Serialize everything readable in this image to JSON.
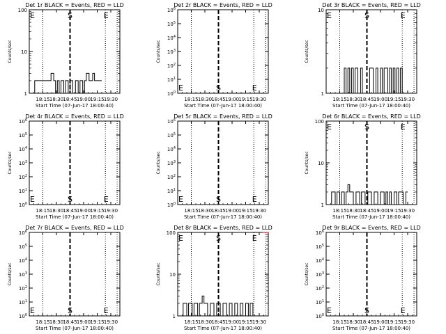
{
  "figure": {
    "start_time_label": "Start Time (07-Jun-17 18:00:40)",
    "x_ticks": [
      "18:15",
      "18:30",
      "18:45",
      "19:00",
      "19:15",
      "19:30"
    ],
    "x_tick_values": [
      15,
      30,
      45,
      60,
      75,
      90
    ],
    "xlim": [
      0,
      100
    ],
    "start_marker_x": 45,
    "end_marker_x": 84,
    "start_label": "S",
    "end_label": "E",
    "ylabel": "Counts/sec",
    "colors": {
      "events": "#000000",
      "lld": "#ff0000",
      "axes": "#000000"
    }
  },
  "chart_data": [
    {
      "type": "line",
      "title": "Det 1r BLACK = Events, RED = LLD",
      "ylabel": "Counts/sec",
      "xlabel": "Start Time (07-Jun-17 18:00:40)",
      "y_scale": "log",
      "ylim": [
        1,
        100
      ],
      "y_ticks": [
        "1",
        "10",
        "100"
      ],
      "y_tick_values": [
        1,
        10,
        100
      ],
      "E_left": true,
      "series": [
        {
          "values": [
            [
              6,
              1
            ],
            [
              6,
              2
            ],
            [
              24,
              2
            ],
            [
              24,
              3
            ],
            [
              27,
              3
            ],
            [
              27,
              2
            ],
            [
              29,
              2
            ],
            [
              29,
              1
            ],
            [
              31,
              1
            ],
            [
              31,
              2
            ],
            [
              33,
              2
            ],
            [
              33,
              1
            ],
            [
              35,
              1
            ],
            [
              35,
              2
            ],
            [
              38,
              2
            ],
            [
              38,
              1
            ],
            [
              40,
              1
            ],
            [
              40,
              2
            ],
            [
              43,
              2
            ],
            [
              43,
              1
            ],
            [
              45,
              1
            ],
            [
              45,
              2
            ],
            [
              48,
              2
            ],
            [
              48,
              1
            ],
            [
              51,
              1
            ],
            [
              51,
              2
            ],
            [
              54,
              2
            ],
            [
              54,
              1
            ],
            [
              56,
              1
            ],
            [
              56,
              2
            ],
            [
              59,
              2
            ],
            [
              59,
              1
            ],
            [
              61,
              1
            ],
            [
              61,
              2
            ],
            [
              63,
              2
            ],
            [
              63,
              3
            ],
            [
              66,
              3
            ],
            [
              66,
              2
            ],
            [
              70,
              2
            ],
            [
              70,
              3
            ],
            [
              72,
              3
            ],
            [
              72,
              2
            ],
            [
              80,
              2
            ]
          ]
        }
      ]
    },
    {
      "type": "line",
      "title": "Det 2r BLACK = Events, RED = LLD",
      "ylabel": "Counts/sec",
      "xlabel": "Start Time (07-Jun-17 18:00:40)",
      "y_scale": "log",
      "ylim": [
        1,
        1000000
      ],
      "y_ticks": [
        "10^0",
        "10^1",
        "10^2",
        "10^3",
        "10^4",
        "10^5",
        "10^6"
      ],
      "y_tick_values": [
        1,
        10,
        100,
        1000,
        10000,
        100000,
        1000000
      ],
      "E_left": true,
      "series": []
    },
    {
      "type": "line",
      "title": "Det 3r BLACK = Events, RED = LLD",
      "ylabel": "Counts/sec",
      "xlabel": "Start Time (07-Jun-17 18:00:40)",
      "y_scale": "log",
      "ylim": [
        1,
        10
      ],
      "y_ticks": [
        "1",
        "10"
      ],
      "y_tick_values": [
        1,
        10
      ],
      "E_left": true,
      "series": [
        {
          "values": [
            [
              20,
              1
            ],
            [
              20,
              2
            ],
            [
              22,
              2
            ],
            [
              22,
              1
            ],
            [
              24,
              1
            ],
            [
              24,
              2
            ],
            [
              26,
              2
            ],
            [
              26,
              1
            ],
            [
              28,
              1
            ],
            [
              28,
              2
            ],
            [
              30,
              2
            ],
            [
              30,
              1
            ],
            [
              32,
              1
            ],
            [
              32,
              2
            ],
            [
              35,
              2
            ],
            [
              35,
              1
            ],
            [
              38,
              1
            ],
            [
              38,
              2
            ],
            [
              40,
              2
            ],
            [
              40,
              1
            ],
            [
              48,
              1
            ],
            [
              48,
              2
            ],
            [
              52,
              2
            ],
            [
              52,
              1
            ],
            [
              55,
              1
            ],
            [
              55,
              2
            ],
            [
              57,
              2
            ],
            [
              57,
              1
            ],
            [
              60,
              1
            ],
            [
              60,
              2
            ],
            [
              62,
              2
            ],
            [
              62,
              1
            ],
            [
              64,
              1
            ],
            [
              64,
              2
            ],
            [
              68,
              2
            ],
            [
              68,
              1
            ],
            [
              70,
              1
            ],
            [
              70,
              2
            ],
            [
              72,
              2
            ],
            [
              72,
              1
            ],
            [
              74,
              1
            ],
            [
              74,
              2
            ],
            [
              76,
              2
            ],
            [
              76,
              1
            ],
            [
              78,
              1
            ],
            [
              78,
              2
            ],
            [
              80,
              2
            ],
            [
              80,
              1
            ],
            [
              82,
              1
            ],
            [
              82,
              2
            ],
            [
              84,
              2
            ],
            [
              84,
              1
            ]
          ]
        }
      ]
    },
    {
      "type": "line",
      "title": "Det 4r BLACK = Events, RED = LLD",
      "ylabel": "Counts/sec",
      "xlabel": "Start Time (07-Jun-17 18:00:40)",
      "y_scale": "log",
      "ylim": [
        1,
        1000000
      ],
      "y_ticks": [
        "10^0",
        "10^1",
        "10^2",
        "10^3",
        "10^4",
        "10^5",
        "10^6"
      ],
      "y_tick_values": [
        1,
        10,
        100,
        1000,
        10000,
        100000,
        1000000
      ],
      "E_left": true,
      "series": []
    },
    {
      "type": "line",
      "title": "Det 5r BLACK = Events, RED = LLD",
      "ylabel": "Counts/sec",
      "xlabel": "Start Time (07-Jun-17 18:00:40)",
      "y_scale": "log",
      "ylim": [
        1,
        1000000
      ],
      "y_ticks": [
        "10^0",
        "10^1",
        "10^2",
        "10^3",
        "10^4",
        "10^5",
        "10^6"
      ],
      "y_tick_values": [
        1,
        10,
        100,
        1000,
        10000,
        100000,
        1000000
      ],
      "E_left": true,
      "series": []
    },
    {
      "type": "line",
      "title": "Det 6r BLACK = Events, RED = LLD",
      "ylabel": "Counts/sec",
      "xlabel": "Start Time (07-Jun-17 18:00:40)",
      "y_scale": "log",
      "ylim": [
        1,
        100
      ],
      "y_ticks": [
        "1",
        "10",
        "100"
      ],
      "y_tick_values": [
        1,
        10,
        100
      ],
      "E_left": true,
      "series": [
        {
          "values": [
            [
              6,
              1
            ],
            [
              6,
              2
            ],
            [
              10,
              2
            ],
            [
              10,
              1
            ],
            [
              12,
              1
            ],
            [
              12,
              2
            ],
            [
              15,
              2
            ],
            [
              15,
              1
            ],
            [
              17,
              1
            ],
            [
              17,
              2
            ],
            [
              20,
              2
            ],
            [
              20,
              1
            ],
            [
              22,
              1
            ],
            [
              22,
              2
            ],
            [
              24,
              2
            ],
            [
              24,
              3
            ],
            [
              26,
              3
            ],
            [
              26,
              2
            ],
            [
              30,
              2
            ],
            [
              30,
              1
            ],
            [
              33,
              1
            ],
            [
              33,
              2
            ],
            [
              37,
              2
            ],
            [
              37,
              1
            ],
            [
              39,
              1
            ],
            [
              39,
              2
            ],
            [
              43,
              2
            ],
            [
              43,
              1
            ],
            [
              46,
              1
            ],
            [
              46,
              2
            ],
            [
              50,
              2
            ],
            [
              50,
              1
            ],
            [
              53,
              1
            ],
            [
              53,
              2
            ],
            [
              57,
              2
            ],
            [
              57,
              1
            ],
            [
              60,
              1
            ],
            [
              60,
              2
            ],
            [
              64,
              2
            ],
            [
              64,
              1
            ],
            [
              66,
              1
            ],
            [
              66,
              2
            ],
            [
              68,
              2
            ],
            [
              68,
              1
            ],
            [
              70,
              1
            ],
            [
              70,
              2
            ],
            [
              72,
              2
            ],
            [
              72,
              1
            ],
            [
              75,
              1
            ],
            [
              75,
              2
            ],
            [
              78,
              2
            ],
            [
              78,
              1
            ],
            [
              80,
              1
            ],
            [
              80,
              2
            ],
            [
              85,
              2
            ],
            [
              85,
              1
            ],
            [
              88,
              1
            ],
            [
              88,
              2
            ],
            [
              90,
              2
            ]
          ]
        }
      ]
    },
    {
      "type": "line",
      "title": "Det 7r BLACK = Events, RED = LLD",
      "ylabel": "Counts/sec",
      "xlabel": "Start Time (07-Jun-17 18:00:40)",
      "y_scale": "log",
      "ylim": [
        1,
        1000000
      ],
      "y_ticks": [
        "10^0",
        "10^1",
        "10^2",
        "10^3",
        "10^4",
        "10^5",
        "10^6"
      ],
      "y_tick_values": [
        1,
        10,
        100,
        1000,
        10000,
        100000,
        1000000
      ],
      "E_left": true,
      "series": []
    },
    {
      "type": "line",
      "title": "Det 8r BLACK = Events, RED = LLD",
      "ylabel": "Counts/sec",
      "xlabel": "Start Time (07-Jun-17 18:00:40)",
      "y_scale": "log",
      "ylim": [
        1,
        100
      ],
      "y_ticks": [
        "1",
        "10",
        "100"
      ],
      "y_tick_values": [
        1,
        10,
        100
      ],
      "E_left": true,
      "series": [
        {
          "values": [
            [
              6,
              1
            ],
            [
              6,
              2
            ],
            [
              10,
              2
            ],
            [
              10,
              1
            ],
            [
              12,
              1
            ],
            [
              12,
              2
            ],
            [
              16,
              2
            ],
            [
              16,
              1
            ],
            [
              18,
              1
            ],
            [
              18,
              2
            ],
            [
              22,
              2
            ],
            [
              22,
              1
            ],
            [
              24,
              1
            ],
            [
              24,
              2
            ],
            [
              27,
              2
            ],
            [
              27,
              3
            ],
            [
              29,
              3
            ],
            [
              29,
              2
            ],
            [
              33,
              2
            ],
            [
              33,
              1
            ],
            [
              36,
              1
            ],
            [
              36,
              2
            ],
            [
              40,
              2
            ],
            [
              40,
              1
            ],
            [
              43,
              1
            ],
            [
              43,
              2
            ],
            [
              47,
              2
            ],
            [
              47,
              1
            ],
            [
              50,
              1
            ],
            [
              50,
              2
            ],
            [
              54,
              2
            ],
            [
              54,
              1
            ],
            [
              57,
              1
            ],
            [
              57,
              2
            ],
            [
              60,
              2
            ],
            [
              60,
              1
            ],
            [
              63,
              1
            ],
            [
              63,
              2
            ],
            [
              66,
              2
            ],
            [
              66,
              1
            ],
            [
              69,
              1
            ],
            [
              69,
              2
            ],
            [
              72,
              2
            ],
            [
              72,
              1
            ],
            [
              75,
              1
            ],
            [
              75,
              2
            ],
            [
              78,
              2
            ],
            [
              78,
              1
            ],
            [
              80,
              1
            ],
            [
              80,
              2
            ],
            [
              83,
              2
            ],
            [
              83,
              1
            ]
          ]
        }
      ],
      "lld_series": [
        {
          "values": [
            [
              94,
              100
            ],
            [
              100,
              100
            ]
          ]
        }
      ]
    },
    {
      "type": "line",
      "title": "Det 9r BLACK = Events, RED = LLD",
      "ylabel": "Counts/sec",
      "xlabel": "Start Time (07-Jun-17 18:00:40)",
      "y_scale": "log",
      "ylim": [
        1,
        1000000
      ],
      "y_ticks": [
        "10^0",
        "10^1",
        "10^2",
        "10^3",
        "10^4",
        "10^5",
        "10^6"
      ],
      "y_tick_values": [
        1,
        10,
        100,
        1000,
        10000,
        100000,
        1000000
      ],
      "E_left": true,
      "series": []
    }
  ]
}
